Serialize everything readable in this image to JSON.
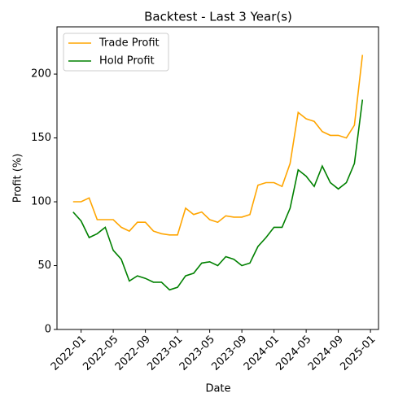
{
  "chart_data": {
    "type": "line",
    "title": "Backtest - Last 3 Year(s)",
    "x_label": "Date",
    "y_label": "Profit (%)",
    "x": [
      "2021-12",
      "2022-01",
      "2022-02",
      "2022-03",
      "2022-04",
      "2022-05",
      "2022-06",
      "2022-07",
      "2022-08",
      "2022-09",
      "2022-10",
      "2022-11",
      "2022-12",
      "2023-01",
      "2023-02",
      "2023-03",
      "2023-04",
      "2023-05",
      "2023-06",
      "2023-07",
      "2023-08",
      "2023-09",
      "2023-10",
      "2023-11",
      "2023-12",
      "2024-01",
      "2024-02",
      "2024-03",
      "2024-04",
      "2024-05",
      "2024-06",
      "2024-07",
      "2024-08",
      "2024-09",
      "2024-10",
      "2024-11",
      "2024-12"
    ],
    "series": [
      {
        "name": "Trade Profit",
        "color": "#ffa500",
        "values": [
          100,
          100,
          103,
          86,
          86,
          86,
          80,
          77,
          84,
          84,
          77,
          75,
          74,
          74,
          95,
          90,
          92,
          86,
          84,
          89,
          88,
          88,
          90,
          113,
          115,
          115,
          112,
          130,
          170,
          165,
          163,
          155,
          152,
          152,
          150,
          160,
          215
        ]
      },
      {
        "name": "Hold Profit",
        "color": "#008000",
        "values": [
          92,
          85,
          72,
          75,
          80,
          62,
          55,
          38,
          42,
          40,
          37,
          37,
          31,
          33,
          42,
          44,
          52,
          53,
          50,
          57,
          55,
          50,
          52,
          65,
          72,
          80,
          80,
          95,
          125,
          120,
          112,
          128,
          115,
          110,
          115,
          130,
          180
        ]
      }
    ],
    "xlim": [
      "2021-10",
      "2025-02"
    ],
    "xticks": [
      "2022-01",
      "2022-05",
      "2022-09",
      "2023-01",
      "2023-05",
      "2023-09",
      "2024-01",
      "2024-05",
      "2024-09",
      "2025-01"
    ],
    "ylim": [
      0,
      237
    ],
    "yticks": [
      0,
      50,
      100,
      150,
      200
    ],
    "legend": "upper left",
    "grid": false
  }
}
